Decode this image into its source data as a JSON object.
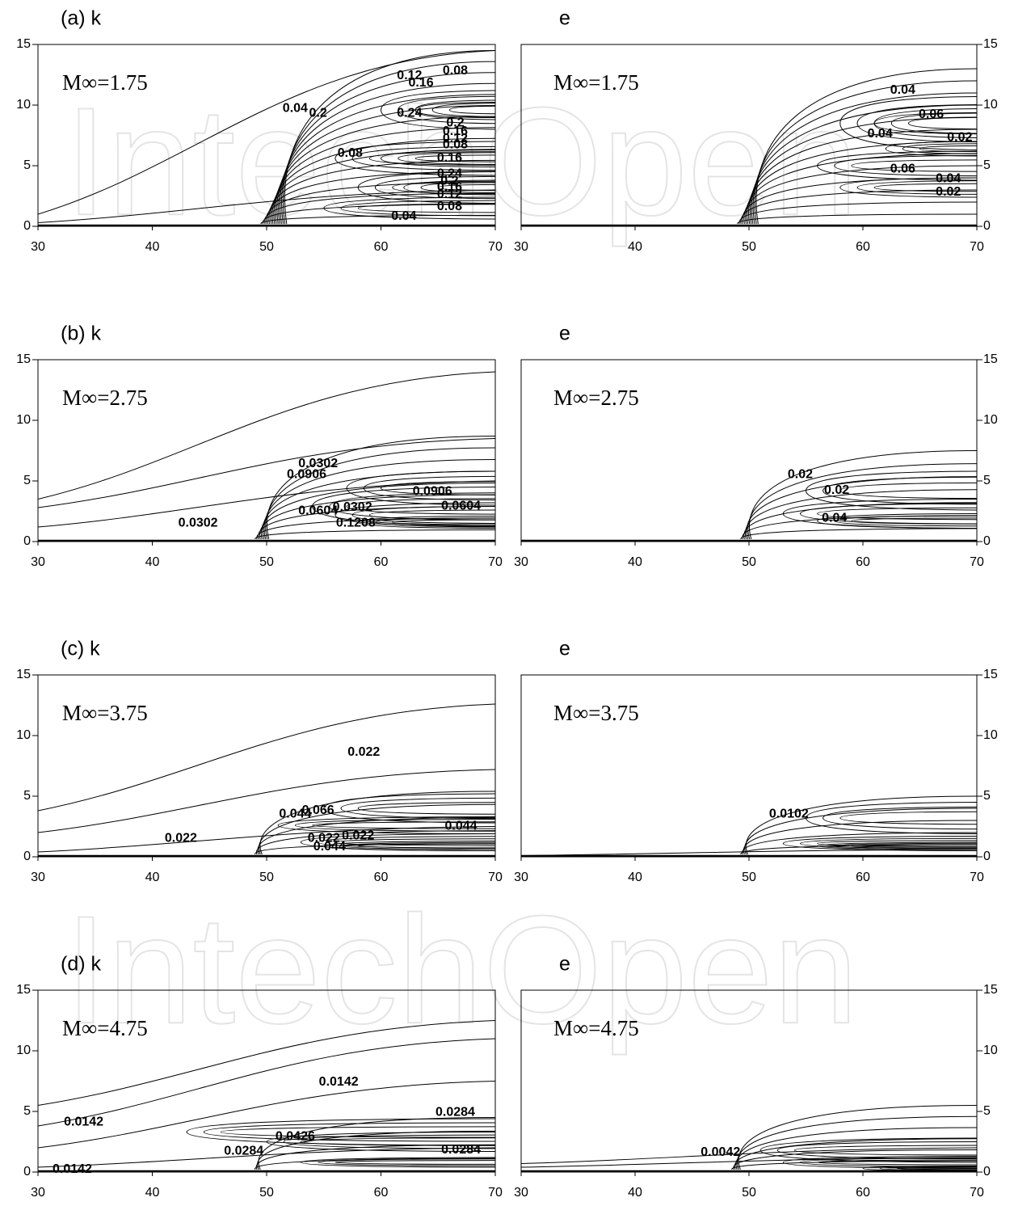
{
  "watermark": "IntechOpen",
  "chart_data": [
    {
      "type": "contour",
      "title": "(a) k",
      "annotation": "M∞=1.75",
      "xlim": [
        30,
        70
      ],
      "ylim": [
        0,
        15
      ],
      "xticks": [
        30,
        40,
        50,
        60,
        70
      ],
      "yticks": [
        0,
        5,
        10,
        15
      ],
      "yaxis_position": "left",
      "contour_labels": [
        0.08,
        0.12,
        0.16,
        0.04,
        0.2,
        0.24,
        0.2,
        0.16,
        0.12,
        0.08,
        0.08,
        0.16,
        0.24,
        0.2,
        0.16,
        0.12,
        0.08,
        0.04
      ]
    },
    {
      "type": "contour",
      "title": "e",
      "annotation": "M∞=1.75",
      "xlim": [
        30,
        70
      ],
      "ylim": [
        0,
        15
      ],
      "xticks": [
        30,
        40,
        50,
        60,
        70
      ],
      "yticks": [
        0,
        5,
        10,
        15
      ],
      "yaxis_position": "right",
      "contour_labels": [
        0.04,
        0.06,
        0.04,
        0.02,
        0.06,
        0.04,
        0.02
      ]
    },
    {
      "type": "contour",
      "title": "(b) k",
      "annotation": "M∞=2.75",
      "xlim": [
        30,
        70
      ],
      "ylim": [
        0,
        15
      ],
      "xticks": [
        30,
        40,
        50,
        60,
        70
      ],
      "yticks": [
        0,
        5,
        10,
        15
      ],
      "yaxis_position": "left",
      "contour_labels": [
        0.0302,
        0.0906,
        0.0906,
        0.0302,
        0.0604,
        0.0604,
        0.1208,
        0.0302
      ]
    },
    {
      "type": "contour",
      "title": "e",
      "annotation": "M∞=2.75",
      "xlim": [
        30,
        70
      ],
      "ylim": [
        0,
        15
      ],
      "xticks": [
        30,
        40,
        50,
        60,
        70
      ],
      "yticks": [
        0,
        5,
        10,
        15
      ],
      "yaxis_position": "right",
      "contour_labels": [
        0.02,
        0.02,
        0.04
      ]
    },
    {
      "type": "contour",
      "title": "(c) k",
      "annotation": "M∞=3.75",
      "xlim": [
        30,
        70
      ],
      "ylim": [
        0,
        15
      ],
      "xticks": [
        30,
        40,
        50,
        60,
        70
      ],
      "yticks": [
        0,
        5,
        10,
        15
      ],
      "yaxis_position": "left",
      "contour_labels": [
        0.022,
        0.044,
        0.066,
        0.022,
        0.022,
        0.044,
        0.022,
        0.044
      ]
    },
    {
      "type": "contour",
      "title": "e",
      "annotation": "M∞=3.75",
      "xlim": [
        30,
        70
      ],
      "ylim": [
        0,
        15
      ],
      "xticks": [
        30,
        40,
        50,
        60,
        70
      ],
      "yticks": [
        0,
        5,
        10,
        15
      ],
      "yaxis_position": "right",
      "contour_labels": [
        0.0102
      ]
    },
    {
      "type": "contour",
      "title": "(d) k",
      "annotation": "M∞=4.75",
      "xlim": [
        30,
        70
      ],
      "ylim": [
        0,
        15
      ],
      "xticks": [
        30,
        40,
        50,
        60,
        70
      ],
      "yticks": [
        0,
        5,
        10,
        15
      ],
      "yaxis_position": "left",
      "contour_labels": [
        0.0142,
        0.0142,
        0.0284,
        0.0284,
        0.0426,
        0.0284,
        0.0142
      ]
    },
    {
      "type": "contour",
      "title": "e",
      "annotation": "M∞=4.75",
      "xlim": [
        30,
        70
      ],
      "ylim": [
        0,
        15
      ],
      "xticks": [
        30,
        40,
        50,
        60,
        70
      ],
      "yticks": [
        0,
        5,
        10,
        15
      ],
      "yaxis_position": "right",
      "contour_labels": [
        0.0042
      ]
    }
  ]
}
